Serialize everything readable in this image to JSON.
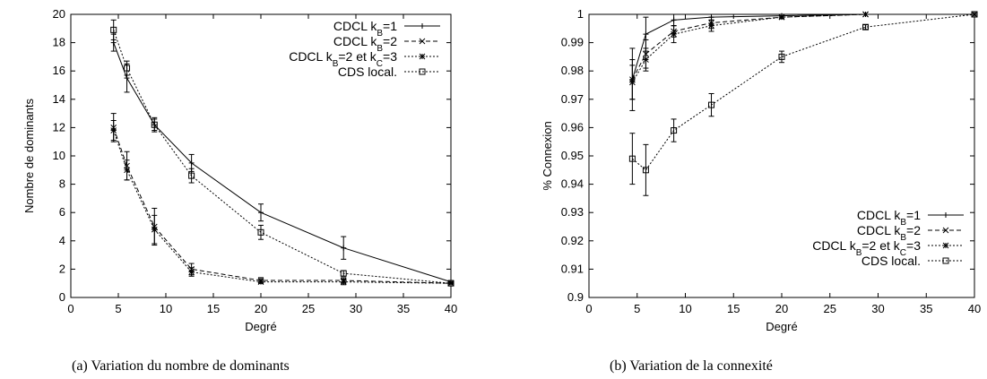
{
  "chart_data": [
    {
      "type": "line",
      "caption": "(a)  Variation du nombre de dominants",
      "xlabel": "Degré",
      "ylabel": "Nombre de dominants",
      "xlim": [
        0,
        40
      ],
      "ylim": [
        0,
        20
      ],
      "xticks": [
        "0",
        "5",
        "10",
        "15",
        "20",
        "25",
        "30",
        "35",
        "40"
      ],
      "yticks": [
        "0",
        "2",
        "4",
        "6",
        "8",
        "10",
        "12",
        "14",
        "16",
        "18",
        "20"
      ],
      "legend_position": "top-right",
      "series": [
        {
          "name": "CDCL k",
          "sub": "B",
          "tail": "=1",
          "style": "solid",
          "marker": "plus",
          "x": [
            4.5,
            5.9,
            8.8,
            12.7,
            20,
            28.7,
            40
          ],
          "y": [
            18,
            15.5,
            12.2,
            9.5,
            6,
            3.5,
            1.1
          ],
          "err": [
            0.6,
            1,
            0.4,
            0.6,
            0.6,
            0.8,
            0.1
          ]
        },
        {
          "name": "CDCL k",
          "sub": "B",
          "tail": "=2",
          "style": "dashed",
          "marker": "x",
          "x": [
            4.5,
            5.9,
            8.8,
            12.7,
            20,
            28.7,
            40
          ],
          "y": [
            12,
            9.3,
            5,
            2,
            1.2,
            1.2,
            1
          ],
          "err": [
            1,
            1,
            1.3,
            0.4,
            0.2,
            0.2,
            0.05
          ]
        },
        {
          "name": "CDCL k",
          "sub": "B",
          "tail": "=2 et k",
          "sub2": "C",
          "tail2": "=3",
          "style": "dotted",
          "marker": "star",
          "x": [
            4.5,
            5.9,
            8.8,
            12.7,
            20,
            28.7,
            40
          ],
          "y": [
            11.8,
            9,
            4.8,
            1.8,
            1.1,
            1.1,
            1
          ],
          "err": [
            0.7,
            0.7,
            1,
            0.3,
            0.1,
            0.2,
            0.05
          ]
        },
        {
          "name": "CDS local.",
          "style": "dotted",
          "marker": "square",
          "x": [
            4.5,
            5.9,
            8.8,
            12.7,
            20,
            28.7,
            40
          ],
          "y": [
            18.9,
            16.2,
            12.2,
            8.6,
            4.6,
            1.7,
            1
          ],
          "err": [
            0.7,
            0.5,
            0.5,
            0.5,
            0.5,
            0.2,
            0.05
          ]
        }
      ]
    },
    {
      "type": "line",
      "caption": "(b)  Variation de la connexité",
      "xlabel": "Degré",
      "ylabel": "% Connexion",
      "xlim": [
        0,
        40
      ],
      "ylim": [
        0.9,
        1
      ],
      "xticks": [
        "0",
        "5",
        "10",
        "15",
        "20",
        "25",
        "30",
        "35",
        "40"
      ],
      "yticks": [
        "0.9",
        "0.91",
        "0.92",
        "0.93",
        "0.94",
        "0.95",
        "0.96",
        "0.97",
        "0.98",
        "0.99",
        "1"
      ],
      "legend_position": "bottom-right",
      "series": [
        {
          "name": "CDCL k",
          "sub": "B",
          "tail": "=1",
          "style": "solid",
          "marker": "plus",
          "x": [
            4.5,
            5.9,
            8.8,
            12.7,
            20,
            28.7,
            40
          ],
          "y": [
            0.977,
            0.993,
            0.998,
            0.999,
            0.9995,
            1,
            1
          ],
          "err": [
            0.011,
            0.006,
            0.002,
            0.001,
            0.0005,
            0,
            0
          ]
        },
        {
          "name": "CDCL k",
          "sub": "B",
          "tail": "=2",
          "style": "dashed",
          "marker": "x",
          "x": [
            4.5,
            5.9,
            8.8,
            12.7,
            20,
            28.7,
            40
          ],
          "y": [
            0.977,
            0.986,
            0.994,
            0.997,
            0.999,
            1,
            1
          ],
          "err": [
            0.007,
            0.005,
            0.002,
            0.002,
            0.0005,
            0,
            0
          ]
        },
        {
          "name": "CDCL k",
          "sub": "B",
          "tail": "=2 et k",
          "sub2": "C",
          "tail2": "=3",
          "style": "dotted",
          "marker": "star",
          "x": [
            4.5,
            5.9,
            8.8,
            12.7,
            20,
            28.7,
            40
          ],
          "y": [
            0.976,
            0.984,
            0.993,
            0.996,
            0.999,
            1,
            1
          ],
          "err": [
            0.006,
            0.004,
            0.003,
            0.002,
            0.0005,
            0,
            0
          ]
        },
        {
          "name": "CDS local.",
          "style": "dotted",
          "marker": "square",
          "x": [
            4.5,
            5.9,
            8.8,
            12.7,
            20,
            28.7,
            40
          ],
          "y": [
            0.949,
            0.945,
            0.959,
            0.968,
            0.985,
            0.9955,
            1
          ],
          "err": [
            0.009,
            0.009,
            0.004,
            0.004,
            0.002,
            0.0008,
            0
          ]
        }
      ]
    }
  ]
}
